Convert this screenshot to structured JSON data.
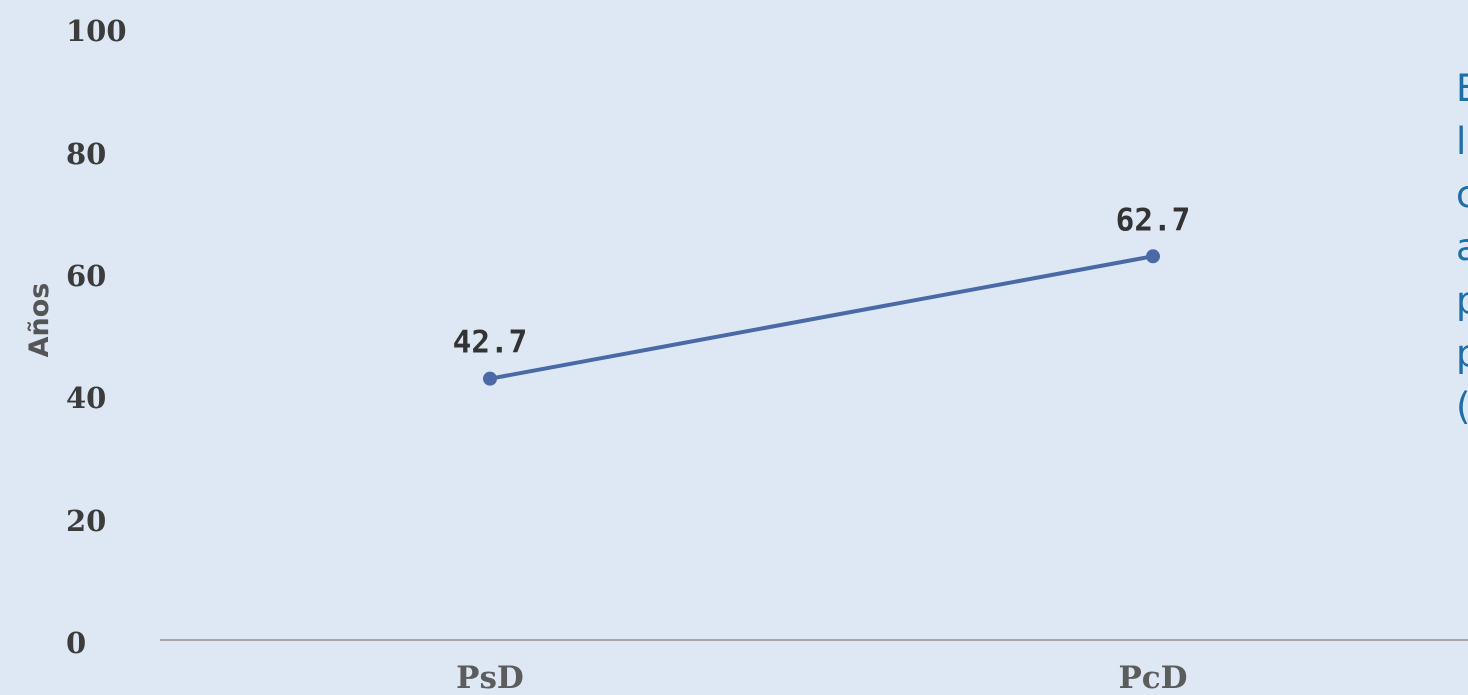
{
  "chart_data": {
    "type": "line",
    "categories": [
      "PsD",
      "PcD"
    ],
    "series": [
      {
        "values": [
          42.7,
          62.7
        ]
      }
    ],
    "data_labels": [
      "42.7",
      "62.7"
    ],
    "ylabel": "Años",
    "xlabel": "",
    "ylim": [
      0,
      100
    ],
    "yticks": [
      "0",
      "20",
      "40",
      "60",
      "80",
      "100"
    ],
    "grid": false,
    "legend": "none",
    "colors": {
      "line": "#4a69a6",
      "marker": "#4a69a6",
      "axis": "#a6a6a6"
    }
  },
  "side_text": {
    "lines": [
      "E",
      "l",
      "c",
      "a",
      "p",
      "p",
      "("
    ]
  }
}
